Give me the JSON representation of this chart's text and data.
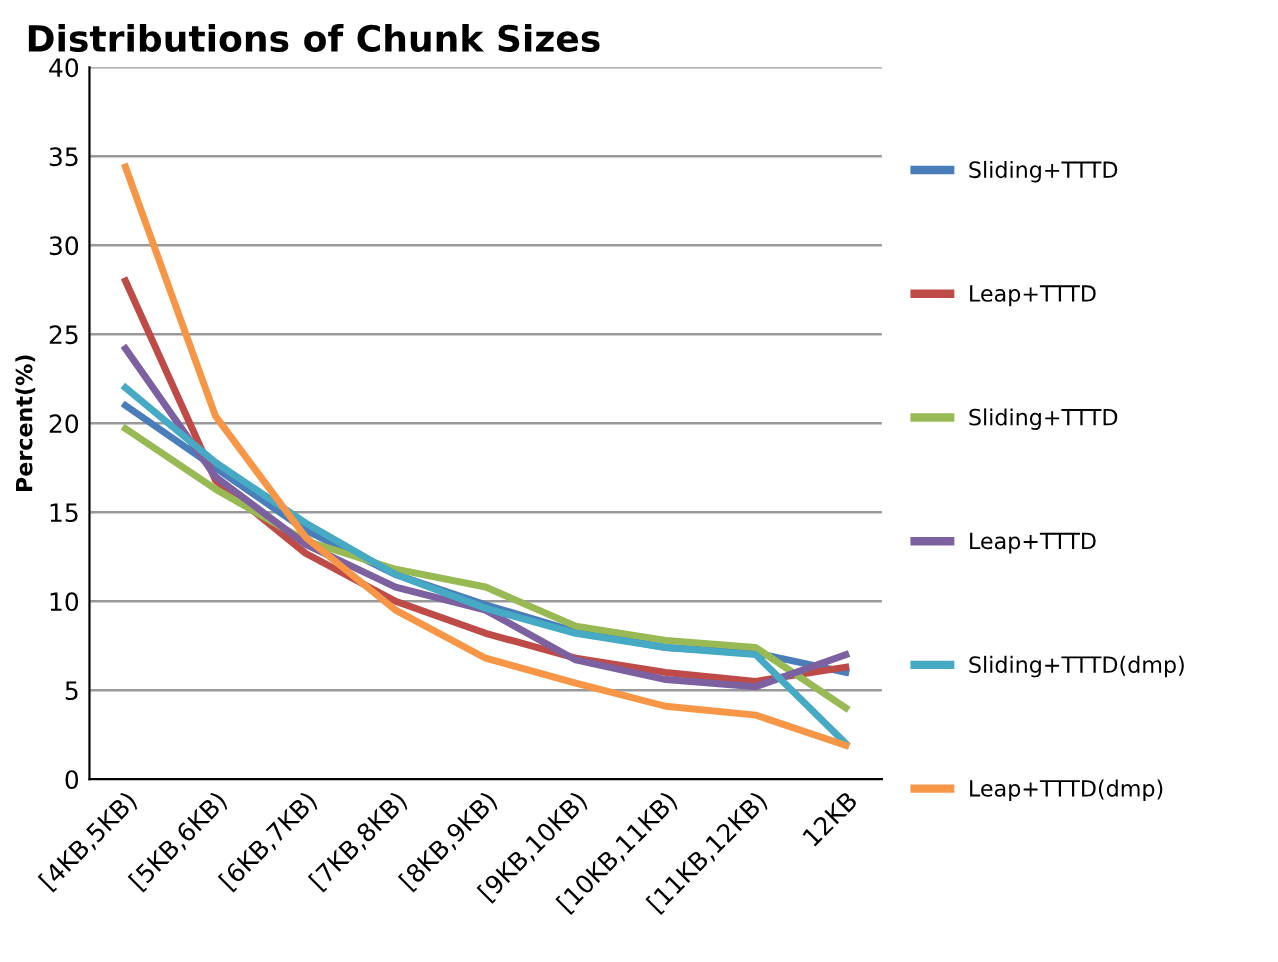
{
  "chart_data": {
    "type": "line",
    "title": "Distributions of Chunk Sizes",
    "ylabel": "Percent(%)",
    "categories": [
      "[4KB,5KB)",
      "[5KB,6KB)",
      "[6KB,7KB)",
      "[7KB,8KB)",
      "[8KB,9KB)",
      "[9KB,10KB)",
      "[10KB,11KB)",
      "[11KB,12KB)",
      "12KB"
    ],
    "series": [
      {
        "name": "Sliding+TTTD",
        "color": "#4a7ebb",
        "values": [
          21,
          17.5,
          14,
          11.5,
          9.8,
          8.3,
          7.4,
          7.1,
          6.0
        ]
      },
      {
        "name": "Leap+TTTD",
        "color": "#be4b48",
        "values": [
          28,
          16.8,
          12.7,
          10,
          8.2,
          6.8,
          6.0,
          5.5,
          6.3
        ]
      },
      {
        "name": "Sliding+TTTD",
        "color": "#98b954",
        "values": [
          19.7,
          16.3,
          13.4,
          11.8,
          10.8,
          8.6,
          7.8,
          7.4,
          4.0
        ]
      },
      {
        "name": "Leap+TTTD",
        "color": "#7d60a0",
        "values": [
          24.2,
          17,
          13.2,
          10.8,
          9.5,
          6.7,
          5.6,
          5.2,
          7.0
        ]
      },
      {
        "name": "Sliding+TTTD(dmp)",
        "color": "#46aac5",
        "values": [
          22,
          17.8,
          14.4,
          11.5,
          9.6,
          8.2,
          7.4,
          7.0,
          2.0
        ]
      },
      {
        "name": "Leap+TTTD(dmp)",
        "color": "#f79646",
        "values": [
          34.4,
          20.4,
          13.6,
          9.5,
          6.8,
          5.4,
          4.1,
          3.6,
          1.9
        ]
      }
    ],
    "ylim": [
      0,
      40
    ],
    "yticks": [
      0,
      5,
      10,
      15,
      20,
      25,
      30,
      35,
      40
    ],
    "grid": "y",
    "legend": "right",
    "marker": "none",
    "line_style": "solid"
  }
}
